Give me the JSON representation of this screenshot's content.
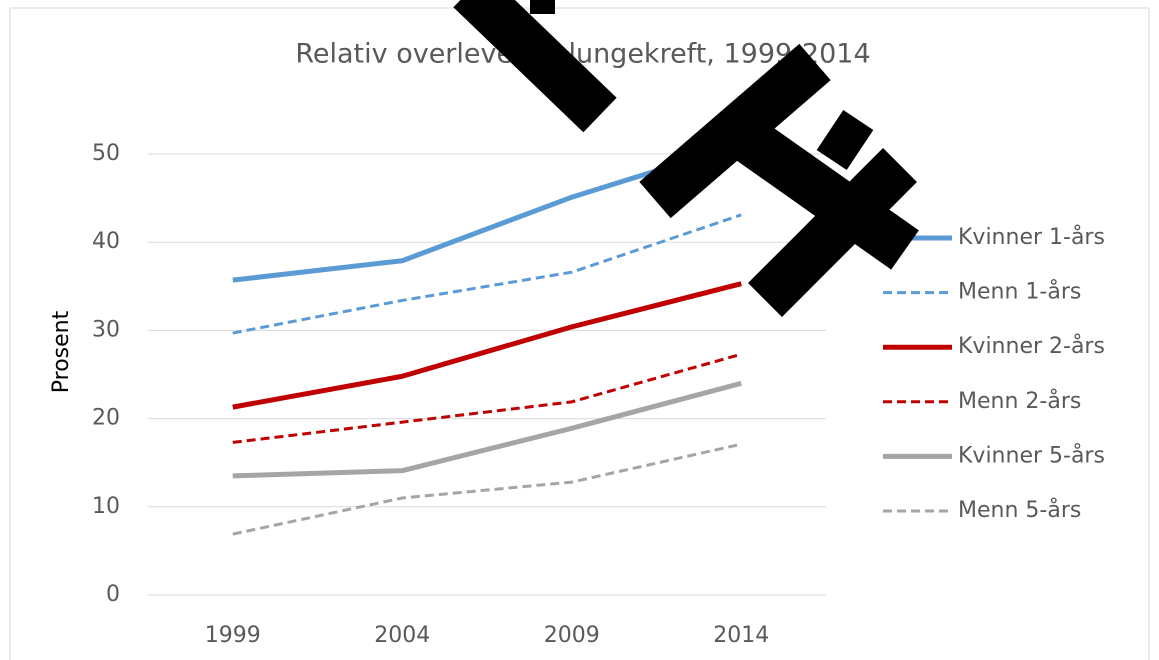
{
  "chart_data": {
    "type": "line",
    "title": "Relativ overlevelse, lungekreft, 1999-2014",
    "y_label": "Prosent",
    "categories": [
      "1999",
      "2004",
      "2009",
      "2014"
    ],
    "series": [
      {
        "name": "Kvinner 1-års",
        "color": "#5b9bd5",
        "dashed": false,
        "values": [
          35.7,
          37.9,
          45.1,
          51.1
        ]
      },
      {
        "name": "Menn 1-års",
        "color": "#5b9bd5",
        "dashed": true,
        "values": [
          29.7,
          33.4,
          36.6,
          43.1
        ]
      },
      {
        "name": "Kvinner 2-års",
        "color": "#c00000",
        "dashed": false,
        "values": [
          21.3,
          24.8,
          30.4,
          35.3
        ]
      },
      {
        "name": "Menn 2-års",
        "color": "#c00000",
        "dashed": true,
        "values": [
          17.3,
          19.6,
          21.9,
          27.3
        ]
      },
      {
        "name": "Kvinner 5-års",
        "color": "#a5a5a5",
        "dashed": false,
        "values": [
          13.5,
          14.1,
          18.9,
          24.0
        ]
      },
      {
        "name": "Menn 5-års",
        "color": "#a5a5a5",
        "dashed": true,
        "values": [
          6.9,
          11.0,
          12.8,
          17.1
        ]
      }
    ],
    "ylim": [
      0,
      50
    ],
    "yticks": [
      0,
      10,
      20,
      30,
      40,
      50
    ],
    "grid": true,
    "legend": "right"
  }
}
